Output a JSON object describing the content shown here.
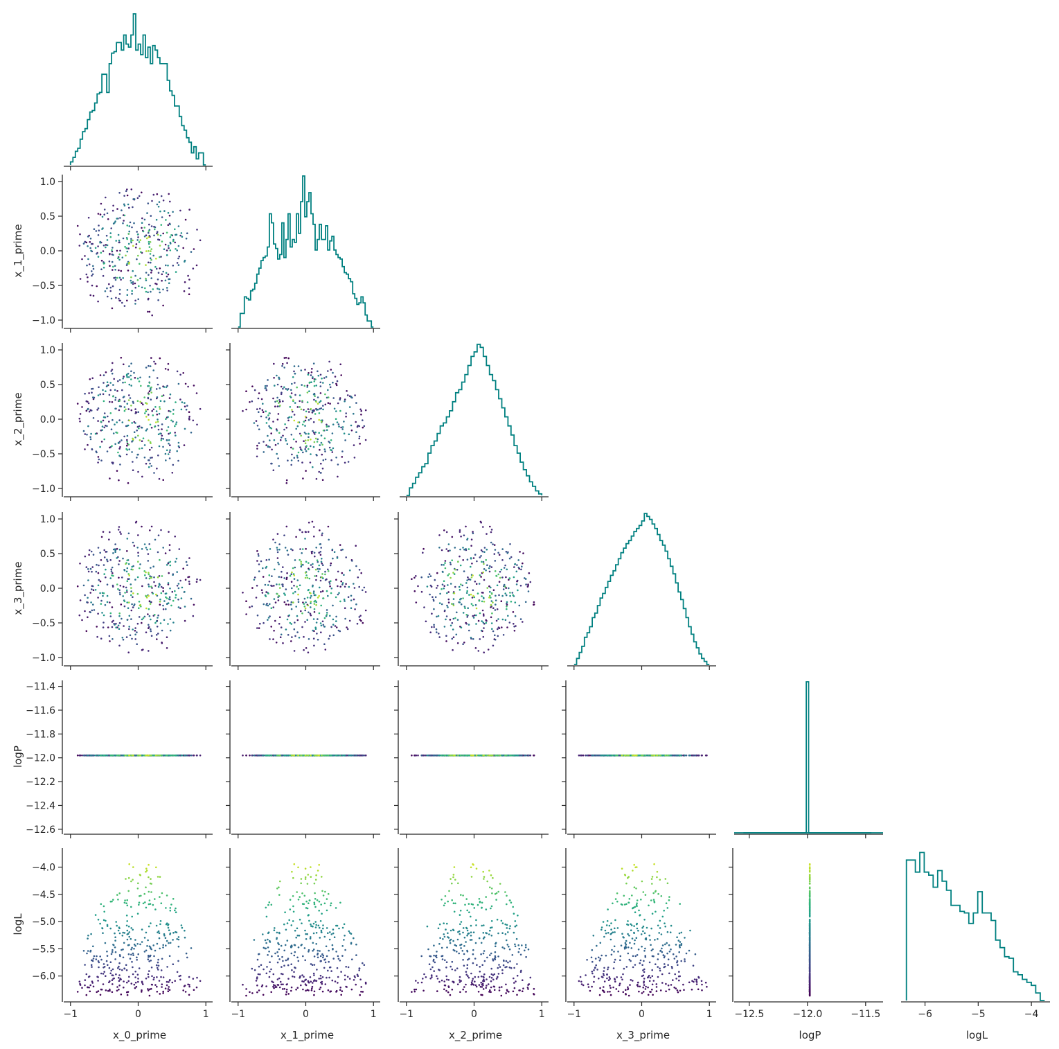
{
  "chart_data": {
    "type": "corner",
    "variables": [
      "x_0_prime",
      "x_1_prime",
      "x_2_prime",
      "x_3_prime",
      "logP",
      "logL"
    ],
    "axis_ranges": {
      "x_0_prime": [
        -1.1,
        1.1
      ],
      "x_1_prime": [
        -1.1,
        1.1
      ],
      "x_2_prime": [
        -1.1,
        1.1
      ],
      "x_3_prime": [
        -1.1,
        1.1
      ],
      "logP": [
        -12.63,
        -11.35
      ],
      "logL": [
        -6.45,
        -3.65
      ]
    },
    "x_ticks": {
      "x_0_prime": [
        -1,
        0,
        1
      ],
      "x_1_prime": [
        -1,
        0,
        1
      ],
      "x_2_prime": [
        -1,
        0,
        1
      ],
      "x_3_prime": [
        -1,
        0,
        1
      ],
      "logP": [
        -12.5,
        -12.0,
        -11.5
      ],
      "logL": [
        -6,
        -5,
        -4
      ]
    },
    "x_tick_labels": {
      "x_0_prime": [
        "−1",
        "0",
        "1"
      ],
      "x_1_prime": [
        "−1",
        "0",
        "1"
      ],
      "x_2_prime": [
        "−1",
        "0",
        "1"
      ],
      "x_3_prime": [
        "−1",
        "0",
        "1"
      ],
      "logP": [
        "−12.5",
        "−12.0",
        "−11.5"
      ],
      "logL": [
        "−6",
        "−5",
        "−4"
      ]
    },
    "y_ticks": {
      "x_1_prime": [
        -1.0,
        -0.5,
        0.0,
        0.5,
        1.0
      ],
      "x_2_prime": [
        -1.0,
        -0.5,
        0.0,
        0.5,
        1.0
      ],
      "x_3_prime": [
        -1.0,
        -0.5,
        0.0,
        0.5,
        1.0
      ],
      "logP": [
        -12.6,
        -12.4,
        -12.2,
        -12.0,
        -11.8,
        -11.6,
        -11.4
      ],
      "logL": [
        -6.0,
        -5.5,
        -5.0,
        -4.5,
        -4.0
      ]
    },
    "y_tick_labels": {
      "x_1_prime": [
        "−1.0",
        "−0.5",
        "0.0",
        "0.5",
        "1.0"
      ],
      "x_2_prime": [
        "−1.0",
        "−0.5",
        "0.0",
        "0.5",
        "1.0"
      ],
      "x_3_prime": [
        "−1.0",
        "−0.5",
        "0.0",
        "0.5",
        "1.0"
      ],
      "logP": [
        "−12.6",
        "−12.4",
        "−12.2",
        "−12.0",
        "−11.8",
        "−11.6",
        "−11.4"
      ],
      "logL": [
        "−6.0",
        "−5.5",
        "−5.0",
        "−4.5",
        "−4.0"
      ]
    },
    "histograms": {
      "x_0_prime": [
        0.02,
        0.05,
        0.09,
        0.11,
        0.17,
        0.22,
        0.24,
        0.3,
        0.35,
        0.36,
        0.41,
        0.47,
        0.48,
        0.6,
        0.6,
        0.48,
        0.67,
        0.74,
        0.75,
        0.81,
        0.81,
        0.76,
        0.86,
        0.8,
        0.78,
        0.86,
        1.0,
        0.76,
        0.8,
        0.73,
        0.86,
        0.71,
        0.78,
        0.67,
        0.79,
        0.76,
        0.71,
        0.67,
        0.67,
        0.67,
        0.56,
        0.49,
        0.46,
        0.39,
        0.39,
        0.32,
        0.26,
        0.23,
        0.18,
        0.15,
        0.08,
        0.12,
        0.04,
        0.08,
        0.08,
        0.0
      ],
      "x_1_prime": [
        0.0,
        0.09,
        0.09,
        0.2,
        0.19,
        0.18,
        0.24,
        0.25,
        0.29,
        0.35,
        0.39,
        0.44,
        0.46,
        0.47,
        0.53,
        0.75,
        0.69,
        0.55,
        0.52,
        0.45,
        0.48,
        0.69,
        0.46,
        0.58,
        0.75,
        0.53,
        0.58,
        0.56,
        0.75,
        0.62,
        0.83,
        1.0,
        0.73,
        0.83,
        0.89,
        0.75,
        0.68,
        0.51,
        0.58,
        0.68,
        0.58,
        0.58,
        0.67,
        0.51,
        0.57,
        0.6,
        0.51,
        0.48,
        0.46,
        0.45,
        0.4,
        0.36,
        0.35,
        0.32,
        0.3,
        0.22,
        0.19,
        0.15,
        0.16,
        0.2,
        0.16,
        0.08,
        0.04,
        0.04,
        0.0
      ],
      "x_2_prime": [
        0.0,
        0.05,
        0.08,
        0.12,
        0.15,
        0.19,
        0.21,
        0.28,
        0.33,
        0.36,
        0.41,
        0.46,
        0.48,
        0.52,
        0.56,
        0.62,
        0.68,
        0.7,
        0.75,
        0.8,
        0.86,
        0.92,
        0.95,
        1.0,
        0.98,
        0.92,
        0.86,
        0.8,
        0.76,
        0.7,
        0.64,
        0.58,
        0.52,
        0.46,
        0.4,
        0.33,
        0.28,
        0.22,
        0.17,
        0.13,
        0.09,
        0.06,
        0.03,
        0.01
      ],
      "x_3_prime": [
        0.0,
        0.04,
        0.08,
        0.12,
        0.18,
        0.21,
        0.25,
        0.31,
        0.34,
        0.39,
        0.44,
        0.47,
        0.51,
        0.55,
        0.59,
        0.62,
        0.66,
        0.7,
        0.74,
        0.77,
        0.8,
        0.82,
        0.85,
        0.88,
        0.9,
        0.92,
        0.95,
        1.0,
        0.98,
        0.96,
        0.93,
        0.9,
        0.86,
        0.82,
        0.79,
        0.75,
        0.7,
        0.65,
        0.6,
        0.54,
        0.48,
        0.43,
        0.37,
        0.31,
        0.25,
        0.2,
        0.15,
        0.11,
        0.07,
        0.04,
        0.02,
        0.0
      ],
      "logP": [
        0.0,
        0.0,
        0.0,
        0.0,
        0.0,
        0.0,
        0.0,
        0.0,
        0.0,
        0.0,
        0.0,
        0.0,
        0.0,
        0.0,
        0.0,
        0.0,
        0.0,
        0.0,
        0.0,
        0.0,
        0.0,
        0.0,
        0.0,
        0.0,
        0.0,
        0.0,
        0.0,
        1.0,
        0.0,
        0.0,
        0.0,
        0.0,
        0.0,
        0.0,
        0.0,
        0.0,
        0.0,
        0.0,
        0.0,
        0.0,
        0.0,
        0.0,
        0.0,
        0.0,
        0.0,
        0.0,
        0.0,
        0.0,
        0.0,
        0.0,
        0.0,
        0.0,
        0.0,
        0.0,
        0.0
      ],
      "logL": [
        0.93,
        0.93,
        0.85,
        0.98,
        0.85,
        0.83,
        0.75,
        0.86,
        0.79,
        0.73,
        0.63,
        0.63,
        0.59,
        0.58,
        0.51,
        0.58,
        0.72,
        0.58,
        0.58,
        0.53,
        0.4,
        0.35,
        0.29,
        0.28,
        0.19,
        0.17,
        0.14,
        0.12,
        0.1,
        0.05,
        0.0
      ]
    },
    "histogram_color": "#008080",
    "scatter_points_per_panel": 400,
    "scatter_colormap": "viridis",
    "scatter_color_variable": "logL",
    "logP_constant_value": -11.98
  }
}
